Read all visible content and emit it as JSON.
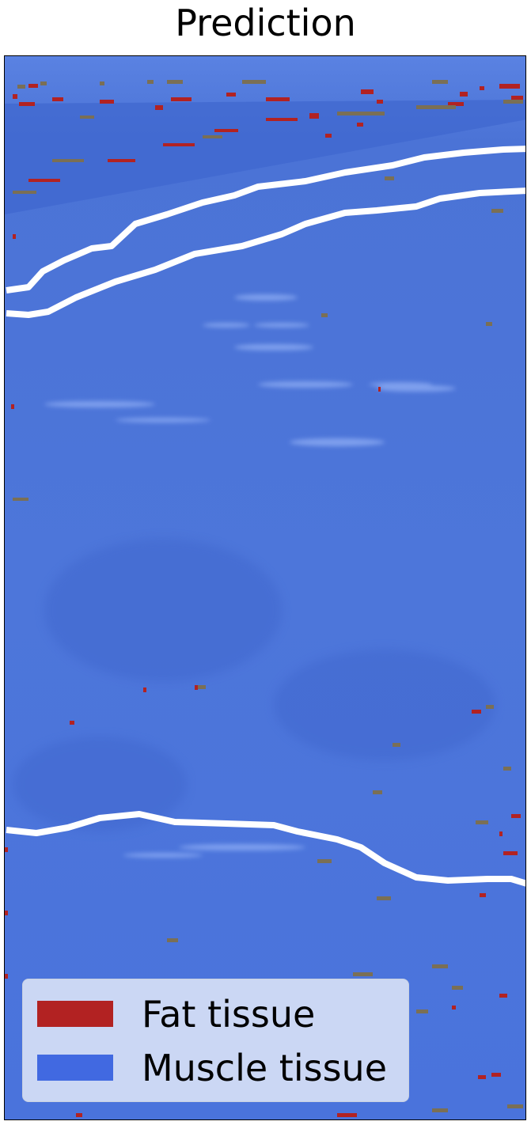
{
  "title": "Prediction",
  "colors": {
    "fat": "#B22222",
    "muscle": "#4169E1",
    "background_image": "#4a74dc",
    "boundary": "#ffffff",
    "artifact": "#7a6f55"
  },
  "legend": {
    "items": [
      {
        "label": "Fat tissue",
        "color": "#B22222"
      },
      {
        "label": "Muscle tissue",
        "color": "#4169E1"
      }
    ]
  }
}
